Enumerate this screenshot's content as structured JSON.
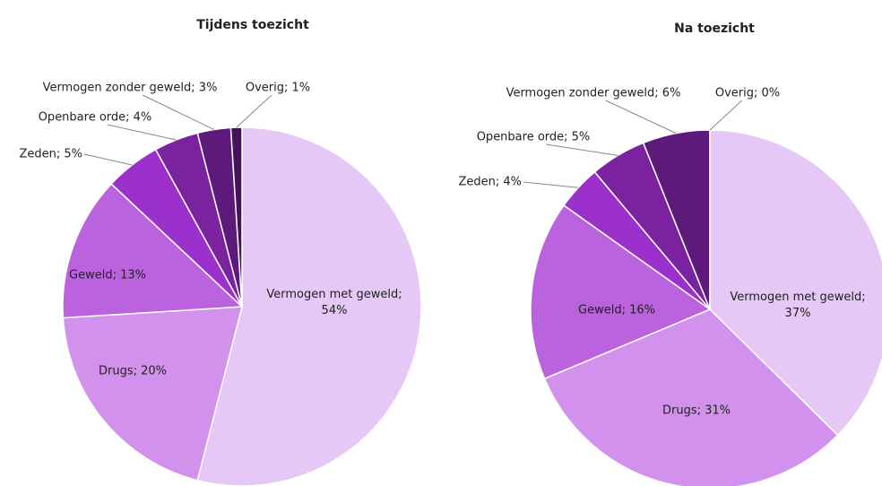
{
  "chart_data": [
    {
      "type": "pie",
      "title": "Tijdens toezicht",
      "values": [
        54,
        20,
        13,
        5,
        4,
        3,
        1
      ],
      "value_labels": [
        "Vermogen met geweld; 54%",
        "Drugs; 20%",
        "Geweld; 13%",
        "Zeden; 5%",
        "Openbare orde; 4%",
        "Vermogen zonder geweld; 3%",
        "Overig; 1%"
      ],
      "colors": [
        "#e5c8f5",
        "#d291ec",
        "#bb62df",
        "#9b30cc",
        "#7b22a0",
        "#5e1a7b",
        "#45125c"
      ]
    },
    {
      "type": "pie",
      "title": "Na toezicht",
      "values": [
        37,
        31,
        16,
        4,
        5,
        6,
        0
      ],
      "value_labels": [
        "Vermogen met geweld; 37%",
        "Drugs; 31%",
        "Geweld; 16%",
        "Zeden; 4%",
        "Openbare orde; 5%",
        "Vermogen zonder geweld; 6%",
        "Overig; 0%"
      ],
      "colors": [
        "#e5c8f5",
        "#d291ec",
        "#bb62df",
        "#9b30cc",
        "#7b22a0",
        "#5e1a7b",
        "#45125c"
      ]
    }
  ]
}
